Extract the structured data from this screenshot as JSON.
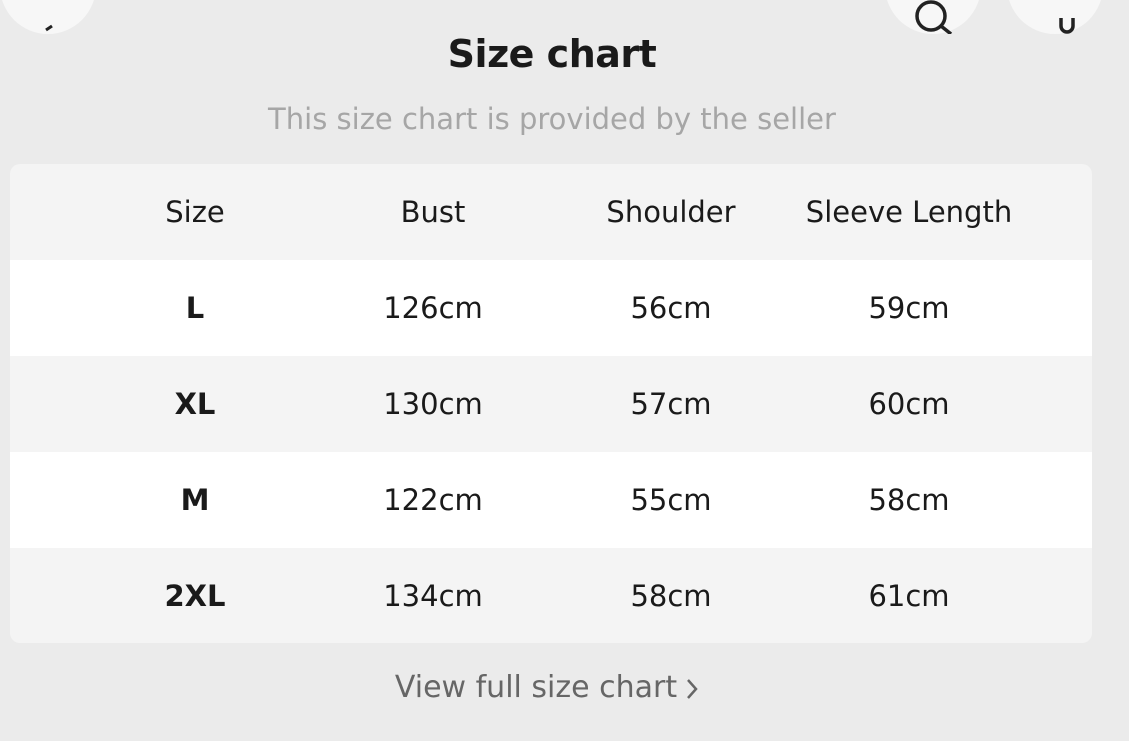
{
  "header": {
    "title": "Size chart",
    "subtitle": "This size chart is provided by the seller"
  },
  "top_icons": [
    "back-icon",
    "search-icon",
    "bag-icon"
  ],
  "table": {
    "columns": [
      "Size",
      "Bust",
      "Shoulder",
      "Sleeve Length"
    ],
    "rows": [
      [
        "L",
        "126cm",
        "56cm",
        "59cm"
      ],
      [
        "XL",
        "130cm",
        "57cm",
        "60cm"
      ],
      [
        "M",
        "122cm",
        "55cm",
        "58cm"
      ],
      [
        "2XL",
        "134cm",
        "58cm",
        "61cm"
      ]
    ]
  },
  "footer": {
    "link": "View full size chart"
  }
}
